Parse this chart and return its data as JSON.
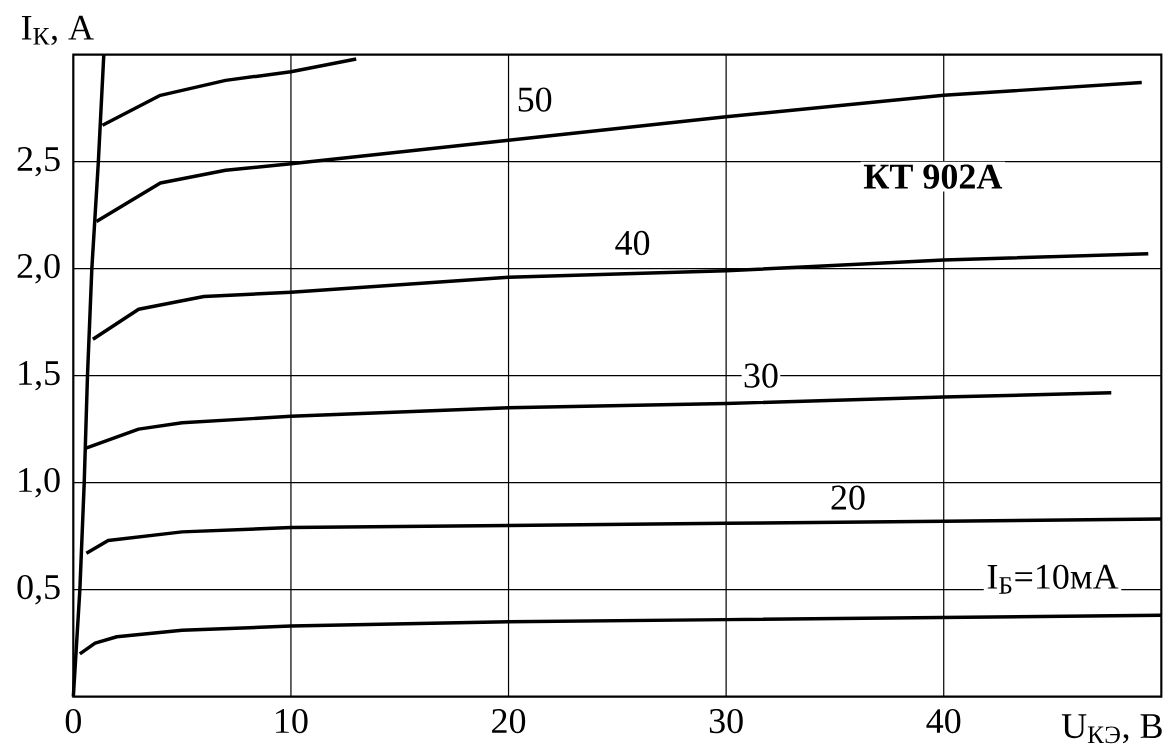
{
  "chart_data": {
    "type": "line",
    "xlabel": "U$_{КЭ}$, В",
    "ylabel": "I$_{К}$, А",
    "xlim": [
      0,
      50
    ],
    "ylim": [
      0,
      3
    ],
    "xticks": [
      0,
      10,
      20,
      30,
      40
    ],
    "yticks": [
      {
        "value": 0.5,
        "label": "0,5"
      },
      {
        "value": 1.0,
        "label": "1,0"
      },
      {
        "value": 1.5,
        "label": "1,5"
      },
      {
        "value": 2.0,
        "label": "2,0"
      },
      {
        "value": 2.5,
        "label": "2,5"
      }
    ],
    "grid": true,
    "series": [
      {
        "color": "#000000",
        "x": [
          0,
          0.3,
          0.5,
          0.65,
          0.85,
          1.15,
          1.4
        ],
        "values": [
          0,
          0.5,
          1.0,
          1.5,
          2.0,
          2.5,
          3.0
        ]
      },
      {
        "color": "#000000",
        "x": [
          0.3,
          1,
          2,
          5,
          10,
          20,
          30,
          40,
          50
        ],
        "values": [
          0.2,
          0.25,
          0.28,
          0.31,
          0.33,
          0.35,
          0.36,
          0.37,
          0.38
        ]
      },
      {
        "color": "#000000",
        "x": [
          0.6,
          1.6,
          5,
          10,
          20,
          30,
          40,
          50
        ],
        "values": [
          0.67,
          0.73,
          0.77,
          0.79,
          0.8,
          0.81,
          0.82,
          0.83
        ]
      },
      {
        "color": "#000000",
        "x": [
          0.55,
          3,
          5,
          10,
          20,
          30,
          40,
          47.7
        ],
        "values": [
          1.16,
          1.25,
          1.28,
          1.31,
          1.35,
          1.37,
          1.4,
          1.42
        ]
      },
      {
        "color": "#000000",
        "x": [
          0.9,
          3,
          6,
          10,
          20,
          30,
          40,
          49.4
        ],
        "values": [
          1.67,
          1.81,
          1.87,
          1.89,
          1.96,
          1.99,
          2.04,
          2.07
        ]
      },
      {
        "color": "#000000",
        "x": [
          1.06,
          4,
          7,
          10,
          20,
          30,
          40,
          49.1
        ],
        "values": [
          2.22,
          2.4,
          2.46,
          2.49,
          2.6,
          2.71,
          2.81,
          2.87
        ]
      },
      {
        "color": "#000000",
        "x": [
          1.34,
          4,
          7,
          10,
          13
        ],
        "values": [
          2.67,
          2.81,
          2.88,
          2.92,
          2.98
        ]
      }
    ],
    "annotations": [
      {
        "text": "50",
        "x": 21.2,
        "y": 2.79
      },
      {
        "text": "40",
        "x": 25.7,
        "y": 2.12
      },
      {
        "text": "30",
        "x": 31.6,
        "y": 1.5
      },
      {
        "text": "20",
        "x": 35.6,
        "y": 0.93
      },
      "I$_{Б}$=10мА",
      "КТ 902А"
    ]
  }
}
